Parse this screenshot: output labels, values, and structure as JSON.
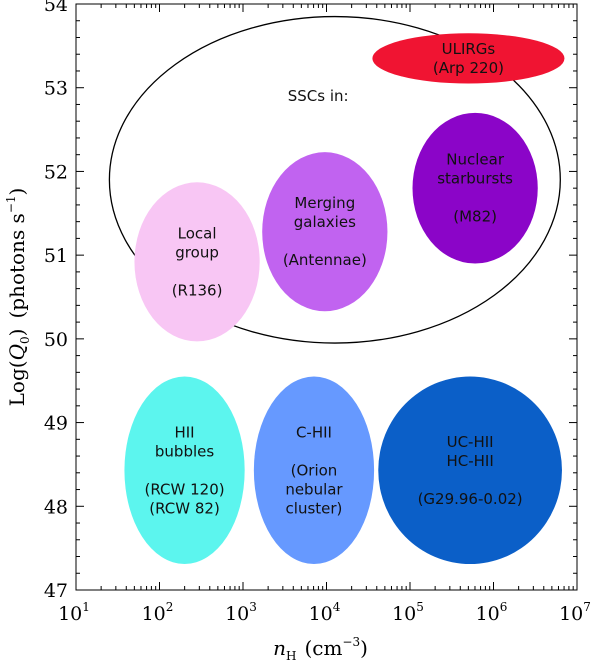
{
  "chart_data": {
    "type": "scatter",
    "title": "",
    "xlabel": {
      "symbol": "n",
      "subscript": "H",
      "units": "(cm",
      "units_exp": "−3",
      "units_close": ")"
    },
    "ylabel": {
      "prefix": "Log(",
      "symbol": "Q",
      "subscript": "0",
      "suffix": ")",
      "units": "(photons s",
      "units_exp": "−1",
      "units_close": ")"
    },
    "xscale": "log",
    "xlim_log": [
      1,
      7
    ],
    "ylim": [
      47,
      54
    ],
    "x_ticks": [
      {
        "base": "10",
        "exp": "1",
        "log": 1
      },
      {
        "base": "10",
        "exp": "2",
        "log": 2
      },
      {
        "base": "10",
        "exp": "3",
        "log": 3
      },
      {
        "base": "10",
        "exp": "4",
        "log": 4
      },
      {
        "base": "10",
        "exp": "5",
        "log": 5
      },
      {
        "base": "10",
        "exp": "6",
        "log": 6
      },
      {
        "base": "10",
        "exp": "7",
        "log": 7
      }
    ],
    "y_ticks": [
      "47",
      "48",
      "49",
      "50",
      "51",
      "52",
      "53",
      "54"
    ],
    "regions": [
      {
        "id": "ssc",
        "label_lines": [
          "SSCs in:"
        ],
        "center_log_n": 4.1,
        "center_logq": 51.9,
        "half_width_dec": 2.7,
        "half_height": 1.95,
        "fill": "none",
        "stroke": "#000000",
        "label_log_n": 3.9,
        "label_logq": 52.9
      },
      {
        "id": "ulirgs",
        "label_lines": [
          "ULIRGs",
          "(Arp 220)"
        ],
        "center_log_n": 5.7,
        "center_logq": 53.35,
        "half_width_dec": 1.15,
        "half_height": 0.3,
        "fill": "#f01432",
        "stroke": "none"
      },
      {
        "id": "local-group",
        "label_lines": [
          "Local",
          "group",
          "",
          "(R136)"
        ],
        "center_log_n": 2.45,
        "center_logq": 50.92,
        "half_width_dec": 0.75,
        "half_height": 0.95,
        "fill": "#f8c6f4",
        "stroke": "none"
      },
      {
        "id": "merging",
        "label_lines": [
          "Merging",
          "galaxies",
          "",
          "(Antennae)"
        ],
        "center_log_n": 3.98,
        "center_logq": 51.28,
        "half_width_dec": 0.75,
        "half_height": 0.95,
        "fill": "#c163f0",
        "stroke": "none"
      },
      {
        "id": "nuclear",
        "label_lines": [
          "Nuclear",
          "starbursts",
          "",
          "(M82)"
        ],
        "center_log_n": 5.78,
        "center_logq": 51.8,
        "half_width_dec": 0.75,
        "half_height": 0.9,
        "fill": "#8b05c8",
        "stroke": "none"
      },
      {
        "id": "hii-bubbles",
        "label_lines": [
          "HII",
          "bubbles",
          "",
          "(RCW 120)",
          "(RCW 82)"
        ],
        "center_log_n": 2.3,
        "center_logq": 48.43,
        "half_width_dec": 0.72,
        "half_height": 1.12,
        "fill": "#5cf5ee",
        "stroke": "none"
      },
      {
        "id": "c-hii",
        "label_lines": [
          "C-HII",
          "",
          "(Orion",
          "nebular",
          "cluster)"
        ],
        "center_log_n": 3.85,
        "center_logq": 48.43,
        "half_width_dec": 0.72,
        "half_height": 1.12,
        "fill": "#6699ff",
        "stroke": "none"
      },
      {
        "id": "uc-hii",
        "label_lines": [
          "UC-HII",
          "HC-HII",
          "",
          "(G29.96-0.02)"
        ],
        "center_log_n": 5.72,
        "center_logq": 48.43,
        "half_width_dec": 1.1,
        "half_height": 1.12,
        "fill": "#0b5fc8",
        "stroke": "none"
      }
    ]
  }
}
